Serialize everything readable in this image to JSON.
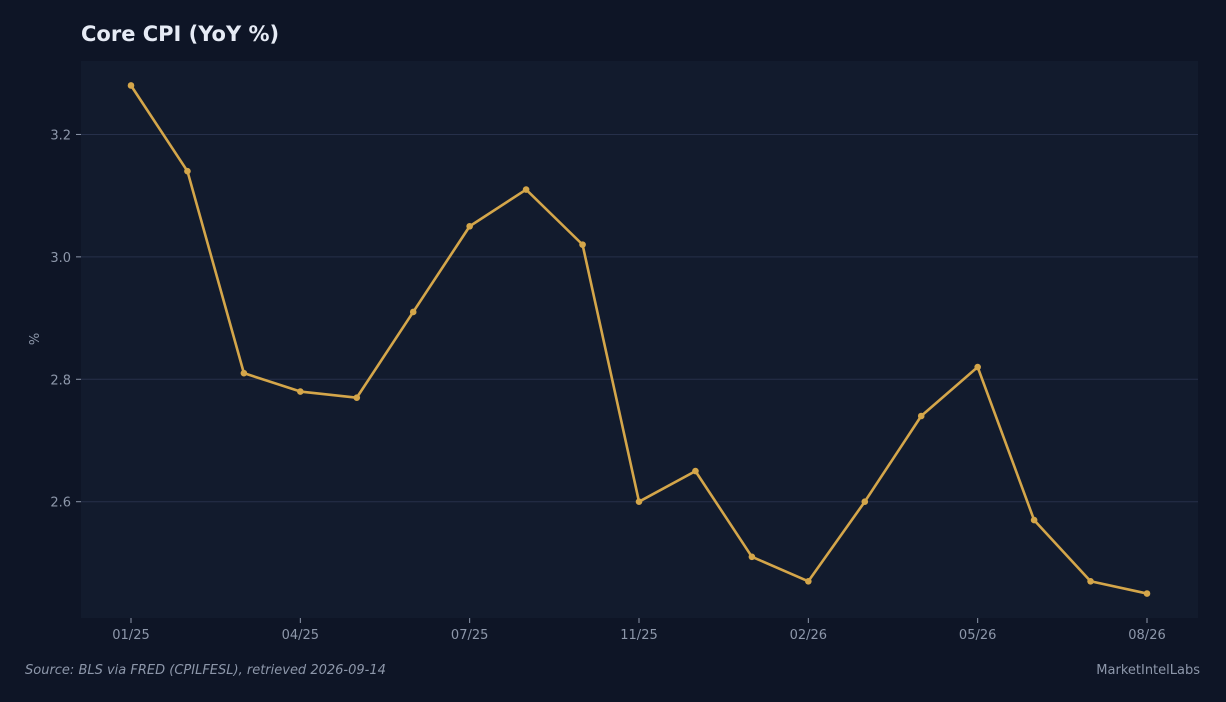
{
  "chart_data": {
    "type": "line",
    "title": "Core CPI (YoY %)",
    "xlabel": "",
    "ylabel": "%",
    "x": [
      "01/25",
      "02/25",
      "03/25",
      "04/25",
      "05/25",
      "06/25",
      "07/25",
      "08/25",
      "09/25",
      "11/25",
      "12/25",
      "01/26",
      "02/26",
      "03/26",
      "04/26",
      "05/26",
      "06/26",
      "07/26",
      "08/26"
    ],
    "x_tick_labels": [
      "01/25",
      "04/25",
      "07/25",
      "11/25",
      "02/26",
      "05/26",
      "08/26"
    ],
    "series": [
      {
        "values": [
          3.28,
          3.14,
          2.81,
          2.78,
          2.77,
          2.91,
          3.05,
          3.11,
          3.02,
          2.6,
          2.65,
          2.51,
          2.47,
          2.6,
          2.74,
          2.82,
          2.57,
          2.47,
          2.45
        ]
      }
    ],
    "y_ticks": [
      2.6,
      2.8,
      3.0,
      3.2
    ],
    "y_tick_labels": [
      "2.6",
      "2.8",
      "3.0",
      "3.2"
    ],
    "ylim": [
      2.41,
      3.32
    ],
    "grid": "horizontal",
    "legend": "none"
  },
  "footer": {
    "source": "Source: BLS via FRED (CPILFESL), retrieved 2026-09-14",
    "brand": "MarketIntelLabs"
  },
  "colors": {
    "background": "#0e1526",
    "plot_background": "#121b2d",
    "grid": "#26304a",
    "series": "#d4a64a",
    "text": "#8d97aa",
    "title": "#e6ebf5"
  }
}
